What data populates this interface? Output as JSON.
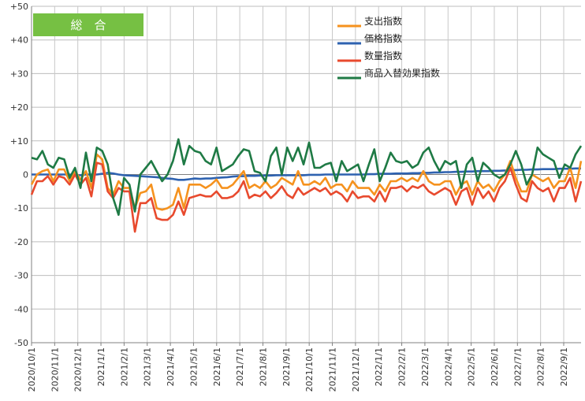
{
  "badge": {
    "label": "総　合",
    "color": "#76c043"
  },
  "colors": {
    "支出指数": "#f5921e",
    "価格指数": "#2e62b0",
    "数量指数": "#e84a2e",
    "商品入替効果指数": "#1f7a45"
  },
  "chart_data": {
    "type": "line",
    "title": "",
    "xlabel": "",
    "ylabel": "",
    "ylim": [
      -50,
      50
    ],
    "yticks": [
      "+50",
      "+40",
      "+30",
      "+20",
      "+10",
      "0",
      "-10",
      "-20",
      "-30",
      "-40",
      "-50"
    ],
    "grid": true,
    "legend_position": "top-right",
    "x_tick_labels": [
      "2020/10/1",
      "2020/11/1",
      "2020/12/1",
      "2021/1/1",
      "2021/2/1",
      "2021/3/1",
      "2021/4/1",
      "2021/5/1",
      "2021/6/1",
      "2021/7/1",
      "2021/8/1",
      "2021/9/1",
      "2021/10/1",
      "2021/11/1",
      "2021/12/1",
      "2022/1/1",
      "2022/2/1",
      "2022/3/1",
      "2022/4/1",
      "2022/5/1",
      "2022/6/1",
      "2022/7/1",
      "2022/8/1",
      "2022/9/1"
    ],
    "series": [
      {
        "name": "支出指数",
        "values": [
          -3,
          0,
          1,
          1.5,
          -2,
          1.5,
          1.5,
          -2,
          1,
          -1.5,
          1,
          -4,
          6,
          4.5,
          -4,
          -6,
          -2,
          -4,
          -4,
          -10,
          -5.5,
          -5,
          -3,
          -10,
          -10.5,
          -10,
          -9,
          -4,
          -10,
          -3,
          -3,
          -3,
          -4,
          -3,
          -1.5,
          -4,
          -4,
          -3,
          -1,
          1,
          -4,
          -3,
          -4,
          -2,
          -4,
          -3,
          -1,
          -2,
          -3,
          1,
          -3,
          -3,
          -2,
          -3,
          -1,
          -4,
          -3,
          -3,
          -5,
          -2,
          -4,
          -4,
          -4,
          -6,
          -3,
          -5,
          -2,
          -2,
          -1,
          -2,
          -1,
          -2,
          1,
          -2,
          -3,
          -3,
          -2,
          -2,
          -6,
          -3,
          -2,
          -6,
          -2,
          -4,
          -3,
          -5,
          -2,
          0,
          4,
          -1,
          -5,
          -5,
          0,
          -1,
          -2,
          -1,
          -4,
          -2,
          -2,
          2,
          -4,
          4
        ],
        "color": "#f5921e"
      },
      {
        "name": "価格指数",
        "values": [
          0,
          0,
          0,
          0,
          0,
          0,
          0,
          0,
          -0.2,
          -0.2,
          0,
          0,
          0,
          0.2,
          0.5,
          0.3,
          0,
          -0.2,
          -0.3,
          -0.4,
          -0.5,
          -0.6,
          -0.7,
          -0.8,
          -1,
          -1.2,
          -1.3,
          -1.6,
          -1.6,
          -1.4,
          -1.2,
          -1.3,
          -1.2,
          -1.2,
          -1,
          -0.9,
          -0.8,
          -0.6,
          -0.5,
          -0.5,
          -0.4,
          -0.4,
          -0.3,
          -0.3,
          -0.3,
          -0.2,
          -0.2,
          -0.2,
          -0.2,
          -0.2,
          -0.2,
          -0.1,
          -0.1,
          -0.1,
          0,
          0,
          0,
          0,
          0,
          0,
          0,
          0,
          0.1,
          0.1,
          0.2,
          0.2,
          0.2,
          0.3,
          0.3,
          0.3,
          0.4,
          0.4,
          0.5,
          0.5,
          0.6,
          0.6,
          0.7,
          0.7,
          0.8,
          0.8,
          0.9,
          0.9,
          1,
          1,
          1,
          1.1,
          1.1,
          1.2,
          1.3,
          1.3,
          1.4,
          1.4,
          1.5,
          1.5,
          1.6,
          1.6,
          1.6,
          1.7,
          1.7,
          1.7,
          1.8,
          1.8
        ],
        "color": "#2e62b0"
      },
      {
        "name": "数量指数",
        "values": [
          -6,
          -2,
          -2,
          -0.5,
          -3,
          -0.5,
          -1,
          -3,
          0,
          -3,
          -1,
          -6.5,
          3.5,
          3,
          -5,
          -7,
          -4,
          -5,
          -5,
          -17,
          -8.5,
          -8.5,
          -7,
          -13,
          -13.5,
          -13.5,
          -12,
          -8,
          -12,
          -7,
          -6.5,
          -6,
          -6.5,
          -6.5,
          -5,
          -7,
          -7,
          -6.5,
          -5,
          -2,
          -7,
          -6,
          -6.5,
          -5,
          -7,
          -5.5,
          -3.5,
          -6,
          -7,
          -4,
          -6,
          -5,
          -4,
          -5,
          -4,
          -6,
          -5,
          -6,
          -8,
          -5,
          -7,
          -6.5,
          -6.5,
          -8,
          -5,
          -8,
          -4,
          -4,
          -3.5,
          -5,
          -3.5,
          -4,
          -3,
          -5,
          -6,
          -5,
          -4,
          -5,
          -9,
          -5,
          -4,
          -9,
          -4,
          -7,
          -5,
          -8,
          -4,
          -2,
          2,
          -3,
          -7,
          -8,
          -2,
          -4,
          -5,
          -4,
          -8,
          -4,
          -4,
          -1,
          -8,
          -2
        ],
        "color": "#e84a2e"
      },
      {
        "name": "商品入替効果指数",
        "values": [
          5,
          4.5,
          7,
          3,
          2,
          5,
          4.5,
          -1,
          2,
          -4,
          6.5,
          -2,
          8,
          7,
          3,
          -7,
          -12,
          -1,
          -3,
          -11,
          0,
          2,
          4,
          1,
          -2,
          0,
          4,
          10.5,
          3,
          8.5,
          7,
          6.5,
          4,
          3,
          8,
          1,
          2,
          3,
          5.5,
          7.5,
          7,
          1,
          0.5,
          -2,
          5.5,
          8,
          0,
          8,
          4,
          8,
          3,
          9.5,
          2,
          2,
          3,
          3.5,
          -2,
          4,
          1,
          2,
          3,
          -2,
          3,
          7.5,
          -2,
          2,
          6.5,
          4,
          3.5,
          4,
          2,
          3,
          6.5,
          8,
          4,
          1,
          4,
          3,
          4,
          -4,
          3,
          5,
          -2,
          3.5,
          2,
          0,
          -1,
          0,
          3,
          7,
          3,
          -3,
          0,
          8,
          6,
          5,
          4,
          -1,
          3,
          2,
          6,
          8.5
        ],
        "color": "#1f7a45"
      }
    ]
  }
}
